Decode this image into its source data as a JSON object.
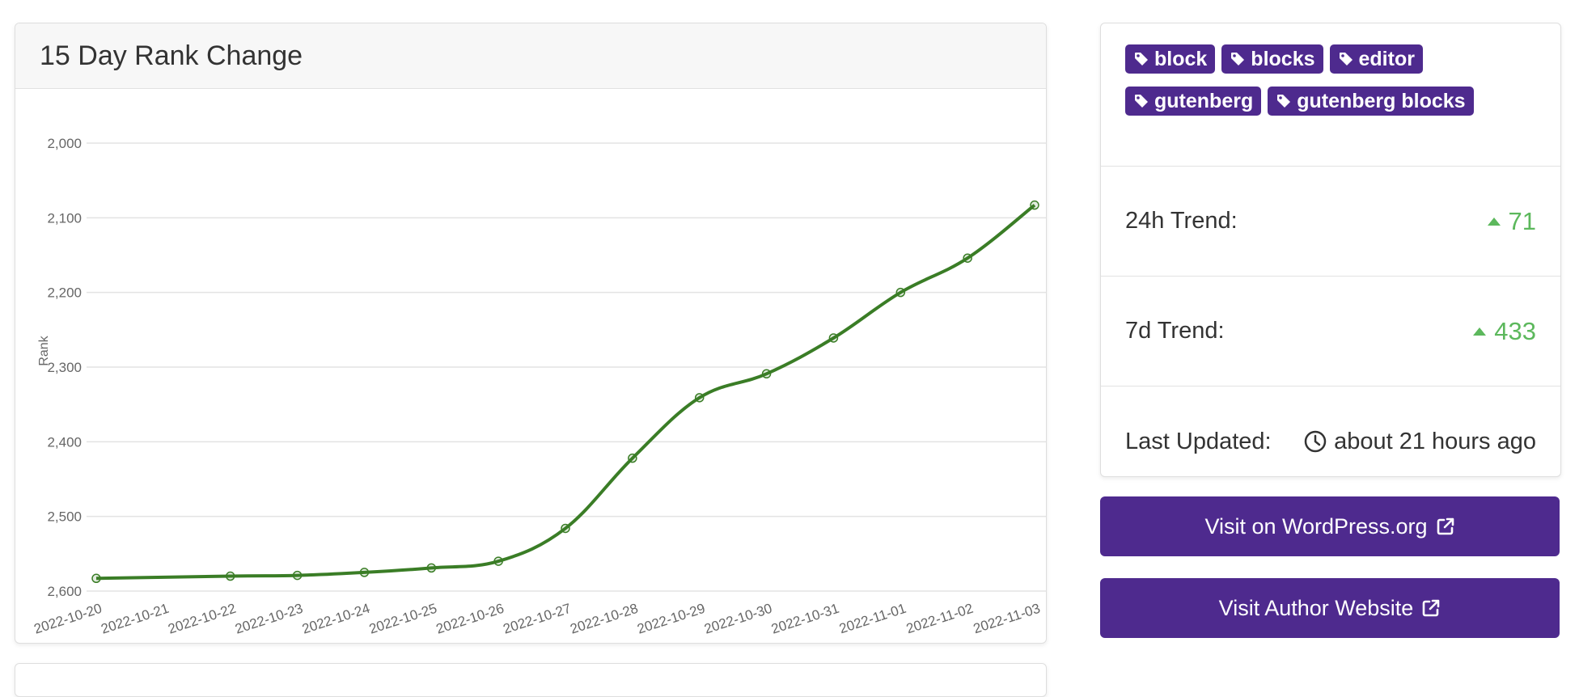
{
  "chart_card": {
    "title": "15 Day Rank Change"
  },
  "chart_data": {
    "type": "line",
    "title": "15 Day Rank Change",
    "xlabel": "",
    "ylabel": "Rank",
    "y_reversed": true,
    "ylim": [
      2000,
      2600
    ],
    "yticks": [
      "2,000",
      "2,100",
      "2,200",
      "2,300",
      "2,400",
      "2,500",
      "2,600"
    ],
    "ytick_values": [
      2000,
      2100,
      2200,
      2300,
      2400,
      2500,
      2600
    ],
    "categories": [
      "2022-10-20",
      "2022-10-21",
      "2022-10-22",
      "2022-10-23",
      "2022-10-24",
      "2022-10-25",
      "2022-10-26",
      "2022-10-27",
      "2022-10-28",
      "2022-10-29",
      "2022-10-30",
      "2022-10-31",
      "2022-11-01",
      "2022-11-02",
      "2022-11-03"
    ],
    "series": [
      {
        "name": "",
        "color": "#3a7d26",
        "values": [
          2583,
          null,
          2580,
          2579,
          2575,
          2569,
          2560,
          2516,
          2422,
          2341,
          2309,
          2261,
          2200,
          2154,
          2083
        ]
      }
    ],
    "grid": true,
    "legend": "none"
  },
  "tags": [
    {
      "label": "block"
    },
    {
      "label": "blocks"
    },
    {
      "label": "editor"
    },
    {
      "label": "gutenberg"
    },
    {
      "label": "gutenberg blocks"
    }
  ],
  "stats": {
    "trend_24h_label": "24h Trend:",
    "trend_24h_value": "71",
    "trend_7d_label": "7d Trend:",
    "trend_7d_value": "433",
    "last_updated_label": "Last Updated:",
    "last_updated_value": "about 21 hours ago"
  },
  "buttons": {
    "wordpress": "Visit on WordPress.org",
    "author": "Visit Author Website"
  },
  "colors": {
    "brand": "#4e2a8e",
    "trend_up": "#5cb85c",
    "line": "#3a7d26"
  },
  "icons": {
    "tag": "tag-icon",
    "trend": "caret-up-icon",
    "clock": "clock-icon",
    "external": "external-link-icon"
  }
}
